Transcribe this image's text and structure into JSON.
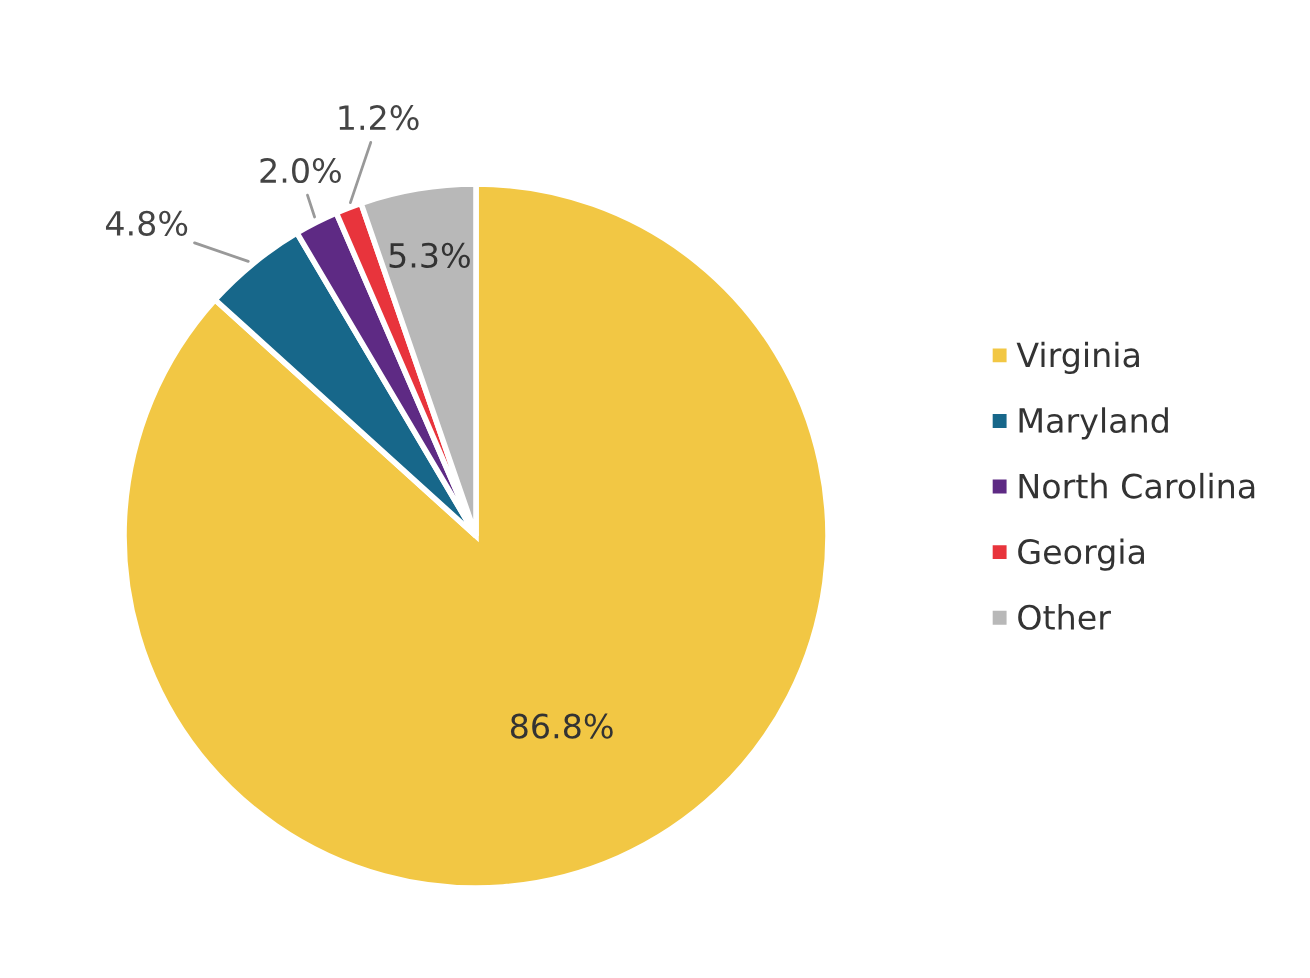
{
  "chart_data": {
    "type": "pie",
    "categories": [
      "Virginia",
      "Maryland",
      "North Carolina",
      "Georgia",
      "Other"
    ],
    "values": [
      86.8,
      4.8,
      2.0,
      1.2,
      5.3
    ],
    "colors": [
      "#f2c744",
      "#17678a",
      "#5e2a84",
      "#e8343c",
      "#b8b8b8"
    ],
    "value_labels": [
      "86.8%",
      "4.8%",
      "2.0%",
      "1.2%",
      "5.3%"
    ],
    "legend": "right"
  }
}
